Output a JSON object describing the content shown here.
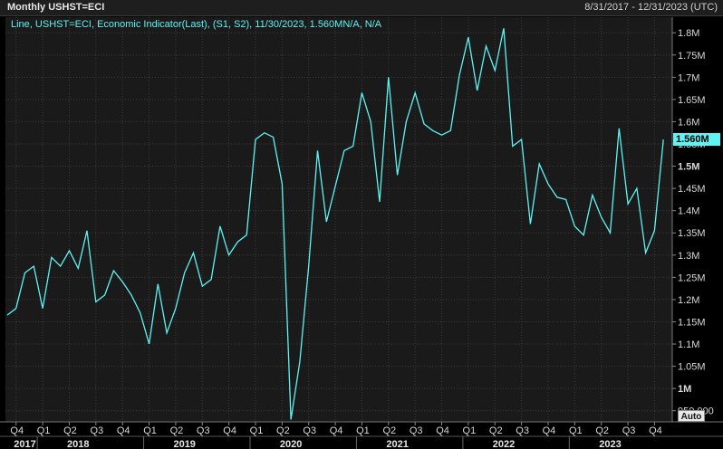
{
  "header": {
    "title": "Monthly USHST=ECI",
    "date_range": "8/31/2017 - 12/31/2023 (UTC)"
  },
  "legend": {
    "text": "Line, USHST=ECI, Economic Indicator(Last), (S1, S2), 11/30/2023, 1.560MN/A, N/A"
  },
  "controls": {
    "auto_label": "Auto"
  },
  "colors": {
    "line": "#5ff3f3",
    "background": "#000000",
    "plot_area": "#1a1a1a",
    "grid": "#3c3c3c"
  },
  "chart_data": {
    "type": "line",
    "series": [
      {
        "name": "USHST=ECI",
        "x": [
          "2017-09",
          "2017-10",
          "2017-11",
          "2017-12",
          "2018-01",
          "2018-02",
          "2018-03",
          "2018-04",
          "2018-05",
          "2018-06",
          "2018-07",
          "2018-08",
          "2018-09",
          "2018-10",
          "2018-11",
          "2018-12",
          "2019-01",
          "2019-02",
          "2019-03",
          "2019-04",
          "2019-05",
          "2019-06",
          "2019-07",
          "2019-08",
          "2019-09",
          "2019-10",
          "2019-11",
          "2019-12",
          "2020-01",
          "2020-02",
          "2020-03",
          "2020-04",
          "2020-05",
          "2020-06",
          "2020-07",
          "2020-08",
          "2020-09",
          "2020-10",
          "2020-11",
          "2020-12",
          "2021-01",
          "2021-02",
          "2021-03",
          "2021-04",
          "2021-05",
          "2021-06",
          "2021-07",
          "2021-08",
          "2021-09",
          "2021-10",
          "2021-11",
          "2021-12",
          "2022-01",
          "2022-02",
          "2022-03",
          "2022-04",
          "2022-05",
          "2022-06",
          "2022-07",
          "2022-08",
          "2022-09",
          "2022-10",
          "2022-11",
          "2022-12",
          "2023-01",
          "2023-02",
          "2023-03",
          "2023-04",
          "2023-05",
          "2023-06",
          "2023-07",
          "2023-08",
          "2023-09",
          "2023-10",
          "2023-11"
        ],
        "values": [
          1.165,
          1.18,
          1.26,
          1.275,
          1.18,
          1.295,
          1.275,
          1.31,
          1.27,
          1.355,
          1.195,
          1.21,
          1.265,
          1.24,
          1.21,
          1.17,
          1.1,
          1.235,
          1.125,
          1.18,
          1.26,
          1.305,
          1.23,
          1.245,
          1.365,
          1.3,
          1.33,
          1.345,
          1.56,
          1.575,
          1.565,
          1.46,
          0.93,
          1.06,
          1.275,
          1.535,
          1.375,
          1.455,
          1.535,
          1.545,
          1.665,
          1.6,
          1.42,
          1.7,
          1.48,
          1.6,
          1.665,
          1.595,
          1.58,
          1.57,
          1.58,
          1.705,
          1.79,
          1.67,
          1.77,
          1.715,
          1.81,
          1.545,
          1.56,
          1.37,
          1.505,
          1.46,
          1.43,
          1.425,
          1.365,
          1.345,
          1.435,
          1.385,
          1.35,
          1.585,
          1.415,
          1.45,
          1.305,
          1.355,
          1.56
        ],
        "last_value_label": "1.560M"
      }
    ],
    "y_ticks": [
      "950,000",
      "1M",
      "1.05M",
      "1.1M",
      "1.15M",
      "1.2M",
      "1.25M",
      "1.3M",
      "1.35M",
      "1.4M",
      "1.45M",
      "1.5M",
      "1.55M",
      "1.6M",
      "1.65M",
      "1.7M",
      "1.75M",
      "1.8M"
    ],
    "y_tick_values": [
      0.95,
      1.0,
      1.05,
      1.1,
      1.15,
      1.2,
      1.25,
      1.3,
      1.35,
      1.4,
      1.45,
      1.5,
      1.55,
      1.6,
      1.65,
      1.7,
      1.75,
      1.8
    ],
    "y_tick_bold": [
      "1M",
      "1.5M"
    ],
    "ylim": [
      0.925,
      1.835
    ],
    "quarter_labels": [
      "Q4",
      "Q1",
      "Q2",
      "Q3",
      "Q4",
      "Q1",
      "Q2",
      "Q3",
      "Q4",
      "Q1",
      "Q2",
      "Q3",
      "Q4",
      "Q1",
      "Q2",
      "Q3",
      "Q4",
      "Q1",
      "Q2",
      "Q3",
      "Q4",
      "Q1",
      "Q2",
      "Q3",
      "Q4"
    ],
    "quarter_months": [
      "2017-10",
      "2018-01",
      "2018-04",
      "2018-07",
      "2018-10",
      "2019-01",
      "2019-04",
      "2019-07",
      "2019-10",
      "2020-01",
      "2020-04",
      "2020-07",
      "2020-10",
      "2021-01",
      "2021-04",
      "2021-07",
      "2021-10",
      "2022-01",
      "2022-04",
      "2022-07",
      "2022-10",
      "2023-01",
      "2023-04",
      "2023-07",
      "2023-10"
    ],
    "year_labels": [
      "2017",
      "2018",
      "2019",
      "2020",
      "2021",
      "2022",
      "2023"
    ],
    "year_months": [
      "2017-11",
      "2018-05",
      "2019-05",
      "2020-05",
      "2021-05",
      "2022-05",
      "2023-05"
    ],
    "xlim": [
      "2017-09",
      "2023-12"
    ],
    "grid": true
  }
}
